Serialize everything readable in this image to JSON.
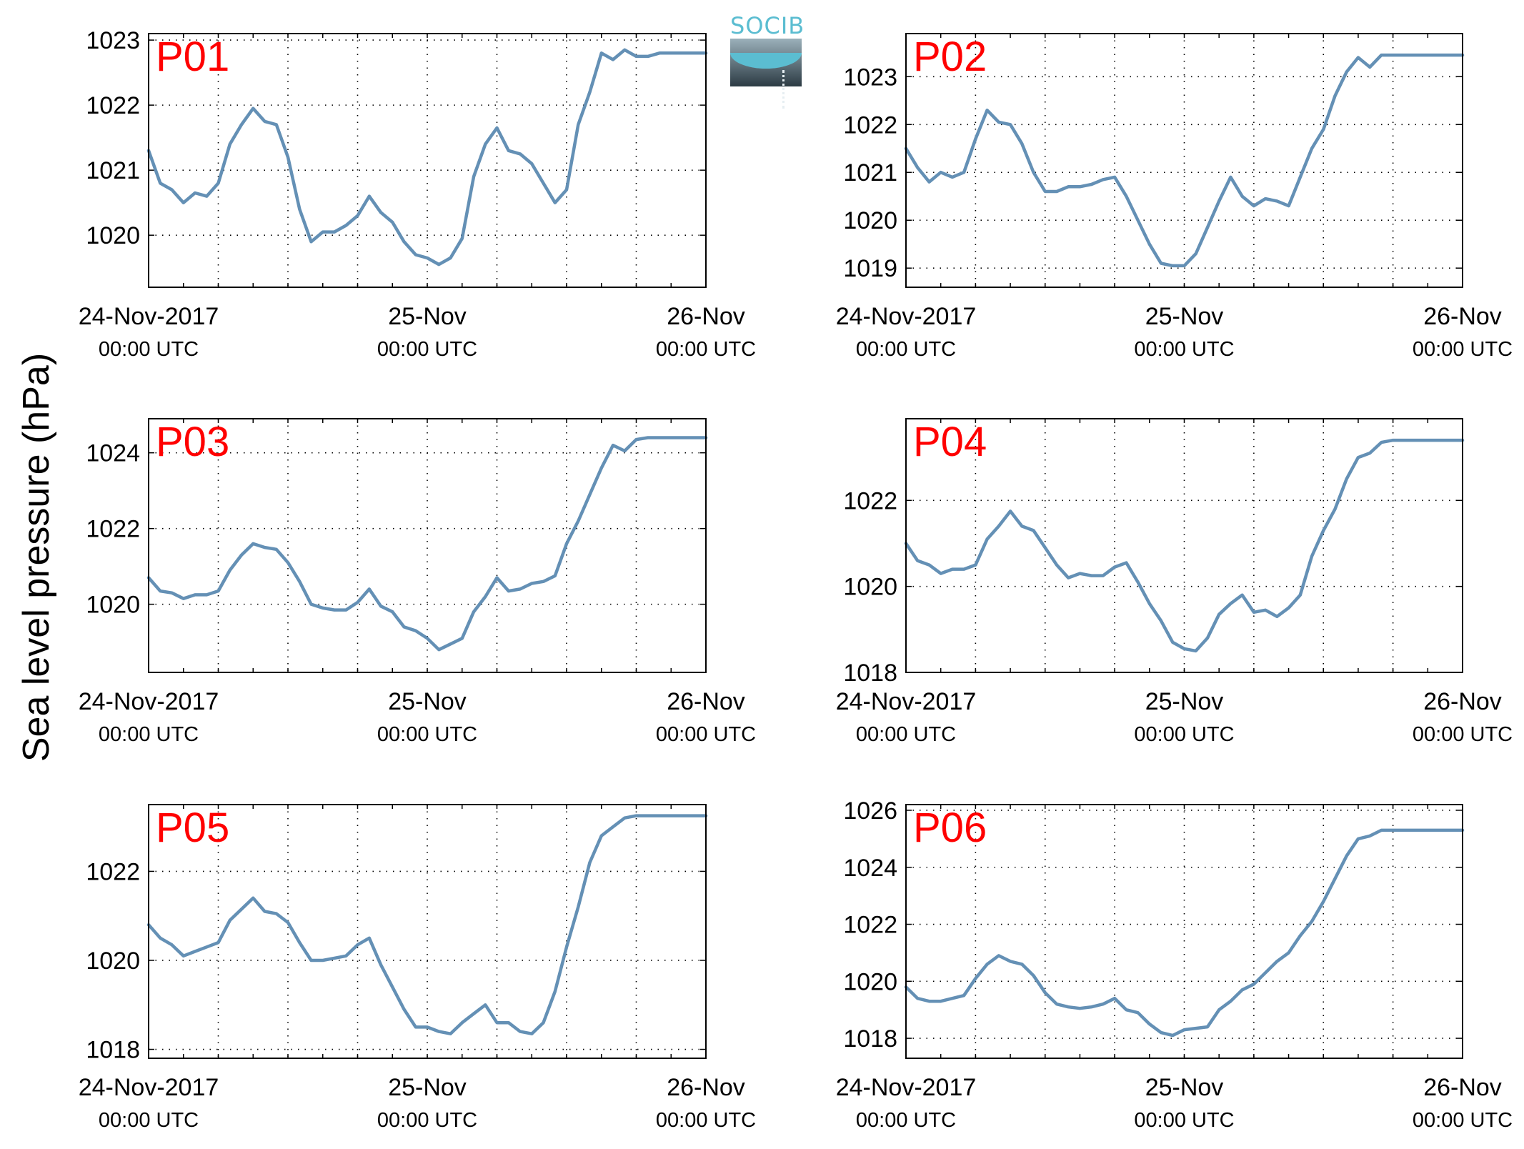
{
  "figure": {
    "ylabel": "Sea level pressure (hPa)",
    "line_color": "#6490b5",
    "panel_label_color": "#ff0000",
    "logo_text": "SOCIB"
  },
  "chart_data": [
    {
      "type": "line",
      "label": "P01",
      "xlim": [
        0,
        48
      ],
      "ylim": [
        1019.2,
        1023.1
      ],
      "yticks": [
        1020,
        1021,
        1022,
        1023
      ],
      "xticks": [
        {
          "x": 0,
          "date": "24-Nov-2017",
          "time": "00:00 UTC"
        },
        {
          "x": 24,
          "date": "25-Nov",
          "time": "00:00 UTC"
        },
        {
          "x": 48,
          "date": "26-Nov",
          "time": "00:00 UTC"
        }
      ],
      "x": [
        0,
        1,
        2,
        3,
        4,
        5,
        6,
        7,
        8,
        9,
        10,
        11,
        12,
        13,
        14,
        15,
        16,
        17,
        18,
        19,
        20,
        21,
        22,
        23,
        24,
        25,
        26,
        27,
        28,
        29,
        30,
        31,
        32,
        33,
        34,
        35,
        36,
        37,
        38,
        39,
        40,
        41,
        42,
        43,
        44,
        45,
        46,
        47,
        48
      ],
      "y": [
        1021.3,
        1020.8,
        1020.7,
        1020.5,
        1020.65,
        1020.6,
        1020.8,
        1021.4,
        1021.7,
        1021.95,
        1021.75,
        1021.7,
        1021.2,
        1020.4,
        1019.9,
        1020.05,
        1020.05,
        1020.15,
        1020.3,
        1020.6,
        1020.35,
        1020.2,
        1019.9,
        1019.7,
        1019.65,
        1019.55,
        1019.65,
        1019.95,
        1020.9,
        1021.4,
        1021.65,
        1021.3,
        1021.25,
        1021.1,
        1020.8,
        1020.5,
        1020.7,
        1021.7,
        1022.2,
        1022.8,
        1022.7,
        1022.85,
        1022.75,
        1022.75,
        1022.8,
        1022.8,
        1022.8,
        1022.8,
        1022.8
      ]
    },
    {
      "type": "line",
      "label": "P02",
      "xlim": [
        0,
        48
      ],
      "ylim": [
        1018.6,
        1023.9
      ],
      "yticks": [
        1019,
        1020,
        1021,
        1022,
        1023
      ],
      "xticks": [
        {
          "x": 0,
          "date": "24-Nov-2017",
          "time": "00:00 UTC"
        },
        {
          "x": 24,
          "date": "25-Nov",
          "time": "00:00 UTC"
        },
        {
          "x": 48,
          "date": "26-Nov",
          "time": "00:00 UTC"
        }
      ],
      "x": [
        0,
        1,
        2,
        3,
        4,
        5,
        6,
        7,
        8,
        9,
        10,
        11,
        12,
        13,
        14,
        15,
        16,
        17,
        18,
        19,
        20,
        21,
        22,
        23,
        24,
        25,
        26,
        27,
        28,
        29,
        30,
        31,
        32,
        33,
        34,
        35,
        36,
        37,
        38,
        39,
        40,
        41,
        42,
        43,
        44,
        45,
        46,
        47,
        48
      ],
      "y": [
        1021.5,
        1021.1,
        1020.8,
        1021.0,
        1020.9,
        1021.0,
        1021.7,
        1022.3,
        1022.05,
        1022.0,
        1021.6,
        1021.0,
        1020.6,
        1020.6,
        1020.7,
        1020.7,
        1020.75,
        1020.85,
        1020.9,
        1020.5,
        1020.0,
        1019.5,
        1019.1,
        1019.05,
        1019.05,
        1019.3,
        1019.85,
        1020.4,
        1020.9,
        1020.5,
        1020.3,
        1020.45,
        1020.4,
        1020.3,
        1020.9,
        1021.5,
        1021.9,
        1022.6,
        1023.1,
        1023.4,
        1023.2,
        1023.45,
        1023.45,
        1023.45,
        1023.45,
        1023.45,
        1023.45,
        1023.45,
        1023.45
      ]
    },
    {
      "type": "line",
      "label": "P03",
      "xlim": [
        0,
        48
      ],
      "ylim": [
        1018.2,
        1024.9
      ],
      "yticks": [
        1020,
        1022,
        1024
      ],
      "xticks": [
        {
          "x": 0,
          "date": "24-Nov-2017",
          "time": "00:00 UTC"
        },
        {
          "x": 24,
          "date": "25-Nov",
          "time": "00:00 UTC"
        },
        {
          "x": 48,
          "date": "26-Nov",
          "time": "00:00 UTC"
        }
      ],
      "x": [
        0,
        1,
        2,
        3,
        4,
        5,
        6,
        7,
        8,
        9,
        10,
        11,
        12,
        13,
        14,
        15,
        16,
        17,
        18,
        19,
        20,
        21,
        22,
        23,
        24,
        25,
        26,
        27,
        28,
        29,
        30,
        31,
        32,
        33,
        34,
        35,
        36,
        37,
        38,
        39,
        40,
        41,
        42,
        43,
        44,
        45,
        46,
        47,
        48
      ],
      "y": [
        1020.7,
        1020.35,
        1020.3,
        1020.15,
        1020.25,
        1020.25,
        1020.35,
        1020.9,
        1021.3,
        1021.6,
        1021.5,
        1021.45,
        1021.1,
        1020.6,
        1020.0,
        1019.9,
        1019.85,
        1019.85,
        1020.05,
        1020.4,
        1019.95,
        1019.8,
        1019.4,
        1019.3,
        1019.1,
        1018.8,
        1018.95,
        1019.1,
        1019.8,
        1020.2,
        1020.7,
        1020.35,
        1020.4,
        1020.55,
        1020.6,
        1020.75,
        1021.6,
        1022.2,
        1022.9,
        1023.6,
        1024.2,
        1024.05,
        1024.35,
        1024.4,
        1024.4,
        1024.4,
        1024.4,
        1024.4,
        1024.4
      ]
    },
    {
      "type": "line",
      "label": "P04",
      "xlim": [
        0,
        48
      ],
      "ylim": [
        1018.0,
        1023.9
      ],
      "yticks": [
        1018,
        1020,
        1022
      ],
      "xticks": [
        {
          "x": 0,
          "date": "24-Nov-2017",
          "time": "00:00 UTC"
        },
        {
          "x": 24,
          "date": "25-Nov",
          "time": "00:00 UTC"
        },
        {
          "x": 48,
          "date": "26-Nov",
          "time": "00:00 UTC"
        }
      ],
      "x": [
        0,
        1,
        2,
        3,
        4,
        5,
        6,
        7,
        8,
        9,
        10,
        11,
        12,
        13,
        14,
        15,
        16,
        17,
        18,
        19,
        20,
        21,
        22,
        23,
        24,
        25,
        26,
        27,
        28,
        29,
        30,
        31,
        32,
        33,
        34,
        35,
        36,
        37,
        38,
        39,
        40,
        41,
        42,
        43,
        44,
        45,
        46,
        47,
        48
      ],
      "y": [
        1021.0,
        1020.6,
        1020.5,
        1020.3,
        1020.4,
        1020.4,
        1020.5,
        1021.1,
        1021.4,
        1021.75,
        1021.4,
        1021.3,
        1020.9,
        1020.5,
        1020.2,
        1020.3,
        1020.25,
        1020.25,
        1020.45,
        1020.55,
        1020.1,
        1019.6,
        1019.2,
        1018.7,
        1018.55,
        1018.5,
        1018.8,
        1019.35,
        1019.6,
        1019.8,
        1019.4,
        1019.45,
        1019.3,
        1019.5,
        1019.8,
        1020.7,
        1021.3,
        1021.8,
        1022.5,
        1023.0,
        1023.1,
        1023.35,
        1023.4,
        1023.4,
        1023.4,
        1023.4,
        1023.4,
        1023.4,
        1023.4
      ]
    },
    {
      "type": "line",
      "label": "P05",
      "xlim": [
        0,
        48
      ],
      "ylim": [
        1017.8,
        1023.5
      ],
      "yticks": [
        1018,
        1020,
        1022
      ],
      "xticks": [
        {
          "x": 0,
          "date": "24-Nov-2017",
          "time": "00:00 UTC"
        },
        {
          "x": 24,
          "date": "25-Nov",
          "time": "00:00 UTC"
        },
        {
          "x": 48,
          "date": "26-Nov",
          "time": "00:00 UTC"
        }
      ],
      "x": [
        0,
        1,
        2,
        3,
        4,
        5,
        6,
        7,
        8,
        9,
        10,
        11,
        12,
        13,
        14,
        15,
        16,
        17,
        18,
        19,
        20,
        21,
        22,
        23,
        24,
        25,
        26,
        27,
        28,
        29,
        30,
        31,
        32,
        33,
        34,
        35,
        36,
        37,
        38,
        39,
        40,
        41,
        42,
        43,
        44,
        45,
        46,
        47,
        48
      ],
      "y": [
        1020.8,
        1020.5,
        1020.35,
        1020.1,
        1020.2,
        1020.3,
        1020.4,
        1020.9,
        1021.15,
        1021.4,
        1021.1,
        1021.05,
        1020.85,
        1020.4,
        1020.0,
        1020.0,
        1020.05,
        1020.1,
        1020.35,
        1020.5,
        1019.9,
        1019.4,
        1018.9,
        1018.5,
        1018.5,
        1018.4,
        1018.35,
        1018.6,
        1018.8,
        1019.0,
        1018.6,
        1018.6,
        1018.4,
        1018.35,
        1018.6,
        1019.3,
        1020.3,
        1021.2,
        1022.2,
        1022.8,
        1023.0,
        1023.2,
        1023.25,
        1023.25,
        1023.25,
        1023.25,
        1023.25,
        1023.25,
        1023.25
      ]
    },
    {
      "type": "line",
      "label": "P06",
      "xlim": [
        0,
        48
      ],
      "ylim": [
        1017.3,
        1026.2
      ],
      "yticks": [
        1018,
        1020,
        1022,
        1024,
        1026
      ],
      "xticks": [
        {
          "x": 0,
          "date": "24-Nov-2017",
          "time": "00:00 UTC"
        },
        {
          "x": 24,
          "date": "25-Nov",
          "time": "00:00 UTC"
        },
        {
          "x": 48,
          "date": "26-Nov",
          "time": "00:00 UTC"
        }
      ],
      "x": [
        0,
        1,
        2,
        3,
        4,
        5,
        6,
        7,
        8,
        9,
        10,
        11,
        12,
        13,
        14,
        15,
        16,
        17,
        18,
        19,
        20,
        21,
        22,
        23,
        24,
        25,
        26,
        27,
        28,
        29,
        30,
        31,
        32,
        33,
        34,
        35,
        36,
        37,
        38,
        39,
        40,
        41,
        42,
        43,
        44,
        45,
        46,
        47,
        48
      ],
      "y": [
        1019.8,
        1019.4,
        1019.3,
        1019.3,
        1019.4,
        1019.5,
        1020.1,
        1020.6,
        1020.9,
        1020.7,
        1020.6,
        1020.2,
        1019.6,
        1019.2,
        1019.1,
        1019.05,
        1019.1,
        1019.2,
        1019.4,
        1019.0,
        1018.9,
        1018.5,
        1018.2,
        1018.1,
        1018.3,
        1018.35,
        1018.4,
        1019.0,
        1019.3,
        1019.7,
        1019.9,
        1020.3,
        1020.7,
        1021.0,
        1021.6,
        1022.1,
        1022.8,
        1023.6,
        1024.4,
        1025.0,
        1025.1,
        1025.3,
        1025.3,
        1025.3,
        1025.3,
        1025.3,
        1025.3,
        1025.3,
        1025.3
      ]
    }
  ]
}
